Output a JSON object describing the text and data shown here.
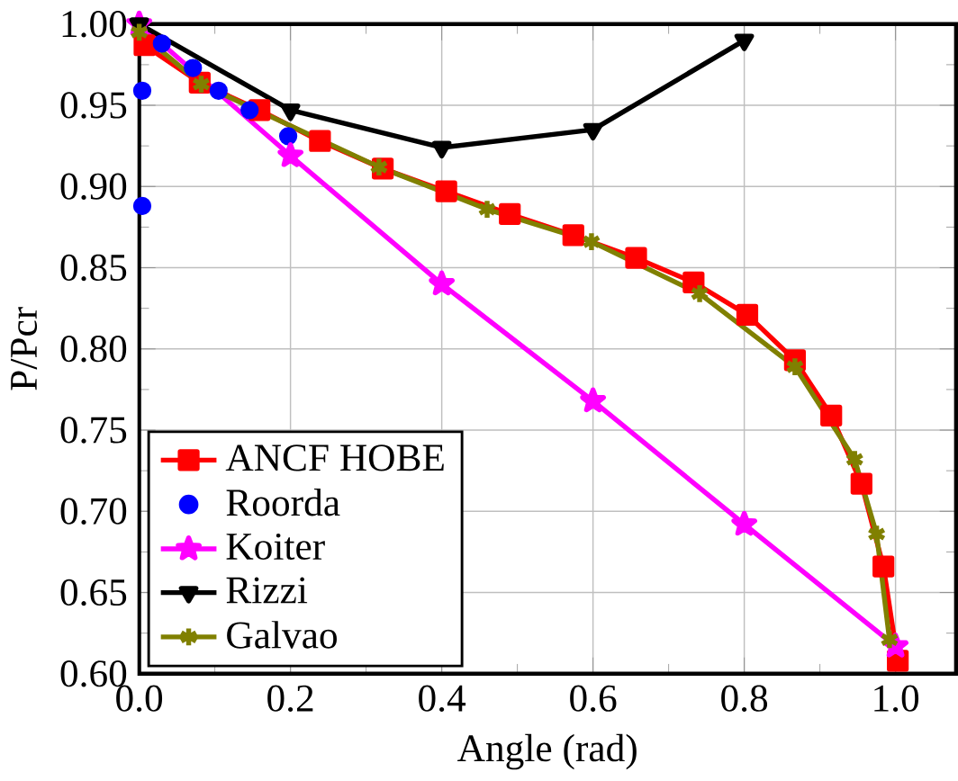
{
  "chart_data": {
    "type": "line",
    "xlabel": "Angle (rad)",
    "ylabel": "P/Pcr",
    "xlim": [
      0,
      1.08
    ],
    "ylim": [
      0.6,
      1.0
    ],
    "xticks": [
      {
        "value": 0,
        "label": "0.0"
      },
      0.2,
      0.4,
      0.6,
      0.8,
      {
        "value": 1.0,
        "label": "1.0"
      }
    ],
    "yticks": [
      {
        "value": 0.6,
        "label": "0.60"
      },
      0.65,
      {
        "value": 0.7,
        "label": "0.70"
      },
      0.75,
      {
        "value": 0.8,
        "label": "0.80"
      },
      0.85,
      {
        "value": 0.9,
        "label": "0.90"
      },
      0.95,
      {
        "value": 1.0,
        "label": "1.00"
      }
    ],
    "grid": true,
    "legend": "bottom left",
    "series": [
      {
        "name": "ANCF HOBE",
        "color": "#ff0000",
        "marker": "square",
        "x": [
          0.007,
          0.08,
          0.159,
          0.239,
          0.322,
          0.406,
          0.49,
          0.574,
          0.657,
          0.733,
          0.804,
          0.867,
          0.915,
          0.955,
          0.984,
          1.003
        ],
        "values": [
          0.987,
          0.964,
          0.947,
          0.928,
          0.911,
          0.897,
          0.883,
          0.87,
          0.856,
          0.841,
          0.821,
          0.793,
          0.759,
          0.717,
          0.666,
          0.608
        ]
      },
      {
        "name": "Roorda",
        "color": "#0000ff",
        "type": "scatter",
        "marker": "circle",
        "x": [
          0.004,
          0.004,
          0.03,
          0.071,
          0.105,
          0.146,
          0.197
        ],
        "values": [
          0.888,
          0.959,
          0.988,
          0.973,
          0.959,
          0.947,
          0.931
        ]
      },
      {
        "name": "Koiter",
        "color": "#ff00ff",
        "marker": "star",
        "x": [
          0,
          0.2,
          0.4,
          0.6,
          0.8,
          1.0
        ],
        "values": [
          1.0,
          0.919,
          0.84,
          0.768,
          0.692,
          0.617
        ]
      },
      {
        "name": "Rizzi",
        "color": "#000000",
        "marker": "triangle",
        "x": [
          0,
          0.2,
          0.4,
          0.6,
          0.8
        ],
        "values": [
          1.0,
          0.947,
          0.924,
          0.935,
          0.99
        ]
      },
      {
        "name": "Galvao",
        "color": "#808000",
        "marker": "cross",
        "x": [
          0,
          0.082,
          0.317,
          0.46,
          0.598,
          0.741,
          0.867,
          0.946,
          0.975,
          0.992
        ],
        "values": [
          0.995,
          0.963,
          0.912,
          0.886,
          0.866,
          0.834,
          0.789,
          0.732,
          0.686,
          0.621
        ]
      }
    ]
  }
}
